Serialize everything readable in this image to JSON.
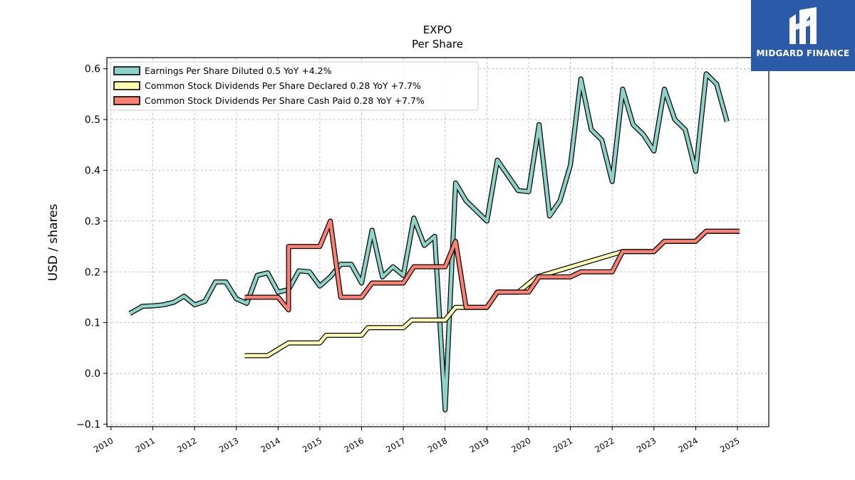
{
  "brand": {
    "name": "MIDGARD FINANCE",
    "color": "#2b5aa8"
  },
  "chart_data": {
    "type": "line",
    "title": "EXPO",
    "subtitle": "Per  Share",
    "ylabel": "USD / shares",
    "xlabel": "",
    "xlim": [
      2009.9,
      2025.75
    ],
    "ylim": [
      -0.105,
      0.622
    ],
    "x_ticks": [
      "2010",
      "2011",
      "2012",
      "2013",
      "2014",
      "2015",
      "2016",
      "2017",
      "2018",
      "2019",
      "2020",
      "2021",
      "2022",
      "2023",
      "2024",
      "2025"
    ],
    "y_ticks": [
      "−0.1",
      "0.0",
      "0.1",
      "0.2",
      "0.3",
      "0.4",
      "0.5",
      "0.6"
    ],
    "grid": true,
    "legend_position": "top-left",
    "series": [
      {
        "name": "Earnings Per Share Diluted  0.5 YoY +4.2%",
        "color": "#8dd3c7",
        "points": [
          [
            2010.45,
            0.118
          ],
          [
            2010.75,
            0.132
          ],
          [
            2011.0,
            0.133
          ],
          [
            2011.25,
            0.135
          ],
          [
            2011.5,
            0.14
          ],
          [
            2011.75,
            0.152
          ],
          [
            2012.0,
            0.135
          ],
          [
            2012.25,
            0.142
          ],
          [
            2012.5,
            0.18
          ],
          [
            2012.75,
            0.18
          ],
          [
            2013.0,
            0.147
          ],
          [
            2013.25,
            0.138
          ],
          [
            2013.5,
            0.193
          ],
          [
            2013.75,
            0.198
          ],
          [
            2014.0,
            0.16
          ],
          [
            2014.25,
            0.165
          ],
          [
            2014.5,
            0.202
          ],
          [
            2014.75,
            0.2
          ],
          [
            2015.0,
            0.172
          ],
          [
            2015.25,
            0.19
          ],
          [
            2015.5,
            0.215
          ],
          [
            2015.75,
            0.215
          ],
          [
            2016.0,
            0.178
          ],
          [
            2016.25,
            0.282
          ],
          [
            2016.5,
            0.19
          ],
          [
            2016.75,
            0.21
          ],
          [
            2017.0,
            0.193
          ],
          [
            2017.25,
            0.306
          ],
          [
            2017.5,
            0.252
          ],
          [
            2017.75,
            0.27
          ],
          [
            2018.0,
            -0.072
          ],
          [
            2018.25,
            0.375
          ],
          [
            2018.5,
            0.34
          ],
          [
            2018.75,
            0.32
          ],
          [
            2019.0,
            0.3
          ],
          [
            2019.25,
            0.42
          ],
          [
            2019.5,
            0.39
          ],
          [
            2019.75,
            0.36
          ],
          [
            2020.0,
            0.358
          ],
          [
            2020.25,
            0.49
          ],
          [
            2020.5,
            0.31
          ],
          [
            2020.75,
            0.34
          ],
          [
            2021.0,
            0.41
          ],
          [
            2021.25,
            0.58
          ],
          [
            2021.5,
            0.48
          ],
          [
            2021.75,
            0.46
          ],
          [
            2022.0,
            0.378
          ],
          [
            2022.25,
            0.56
          ],
          [
            2022.5,
            0.49
          ],
          [
            2022.75,
            0.47
          ],
          [
            2023.0,
            0.438
          ],
          [
            2023.25,
            0.56
          ],
          [
            2023.5,
            0.5
          ],
          [
            2023.75,
            0.48
          ],
          [
            2024.0,
            0.398
          ],
          [
            2024.25,
            0.59
          ],
          [
            2024.5,
            0.57
          ],
          [
            2024.75,
            0.496
          ]
        ]
      },
      {
        "name": "Common Stock Dividends Per Share Declared  0.28 YoY +7.7%",
        "color": "#ffffb3",
        "points": [
          [
            2013.2,
            0.035
          ],
          [
            2013.75,
            0.035
          ],
          [
            2014.25,
            0.06
          ],
          [
            2015.0,
            0.06
          ],
          [
            2015.15,
            0.075
          ],
          [
            2016.0,
            0.075
          ],
          [
            2016.15,
            0.09
          ],
          [
            2017.0,
            0.09
          ],
          [
            2017.2,
            0.105
          ],
          [
            2018.0,
            0.105
          ],
          [
            2018.25,
            0.13
          ],
          [
            2019.0,
            0.13
          ],
          [
            2019.25,
            0.16
          ],
          [
            2019.75,
            0.16
          ],
          [
            2020.2,
            0.19
          ],
          [
            2022.25,
            0.24
          ],
          [
            2023.0,
            0.24
          ],
          [
            2023.25,
            0.26
          ],
          [
            2024.0,
            0.26
          ],
          [
            2024.25,
            0.28
          ],
          [
            2025.05,
            0.28
          ]
        ]
      },
      {
        "name": "Common Stock Dividends Per Share Cash Paid  0.28 YoY +7.7%",
        "color": "#fb8072",
        "points": [
          [
            2013.2,
            0.15
          ],
          [
            2014.0,
            0.15
          ],
          [
            2014.25,
            0.125
          ],
          [
            2014.25,
            0.25
          ],
          [
            2015.0,
            0.25
          ],
          [
            2015.25,
            0.3
          ],
          [
            2015.5,
            0.15
          ],
          [
            2016.0,
            0.15
          ],
          [
            2016.25,
            0.178
          ],
          [
            2017.0,
            0.178
          ],
          [
            2017.25,
            0.21
          ],
          [
            2018.0,
            0.21
          ],
          [
            2018.25,
            0.26
          ],
          [
            2018.5,
            0.13
          ],
          [
            2019.0,
            0.13
          ],
          [
            2019.25,
            0.16
          ],
          [
            2020.0,
            0.16
          ],
          [
            2020.25,
            0.19
          ],
          [
            2021.0,
            0.19
          ],
          [
            2021.25,
            0.2
          ],
          [
            2022.0,
            0.2
          ],
          [
            2022.25,
            0.24
          ],
          [
            2023.0,
            0.24
          ],
          [
            2023.25,
            0.26
          ],
          [
            2024.0,
            0.26
          ],
          [
            2024.25,
            0.28
          ],
          [
            2025.05,
            0.28
          ]
        ]
      }
    ]
  }
}
